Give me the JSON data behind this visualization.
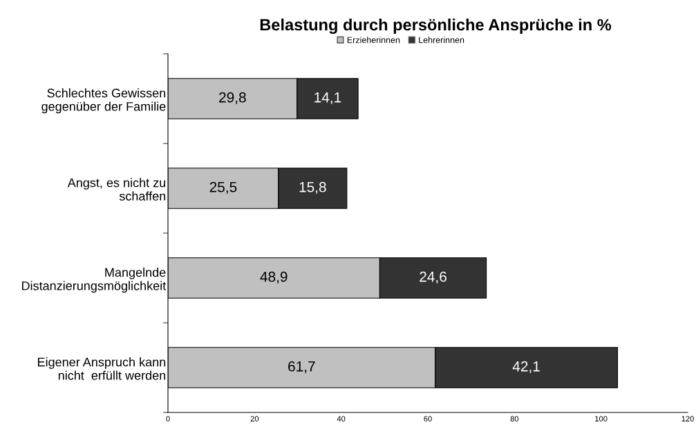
{
  "chart_data": {
    "type": "bar",
    "orientation": "horizontal",
    "stacked": true,
    "title": "Belastung durch persönliche Ansprüche in %",
    "categories": [
      "Schlechtes Gewissen\ngegenüber der Familie",
      "Angst, es nicht zu\nschaffen",
      "Mangelnde\nDistanzierungsmöglichkeit",
      "Eigener Anspruch kann\nnicht  erfüllt werden"
    ],
    "series": [
      {
        "name": "Erzieherinnen",
        "color": "#c0c0c0",
        "values": [
          29.8,
          25.5,
          48.9,
          61.7
        ],
        "value_labels": [
          "29,8",
          "25,5",
          "48,9",
          "61,7"
        ]
      },
      {
        "name": "Lehrerinnen",
        "color": "#333333",
        "values": [
          14.1,
          15.8,
          24.6,
          42.1
        ],
        "value_labels": [
          "14,1",
          "15,8",
          "24,6",
          "42,1"
        ]
      }
    ],
    "xlim": [
      0,
      120
    ],
    "xticks": [
      0,
      20,
      40,
      60,
      80,
      100,
      120
    ],
    "grid": false,
    "legend": "top"
  }
}
